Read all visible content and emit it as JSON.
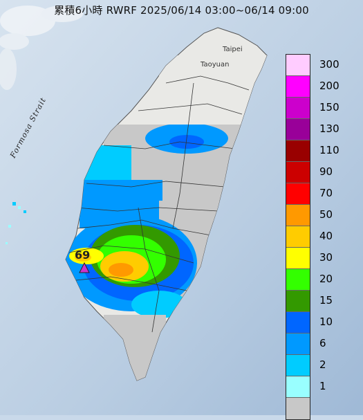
{
  "title": "累積6小時 RWRF 2025/06/14 03:00~06/14 09:00",
  "places": {
    "taipei": "Taipei",
    "taoyuan": "Taoyuan",
    "strait": "Formosa Strait"
  },
  "max_marker": {
    "value": "69",
    "icon": "triangle-icon",
    "color": "#cc33cc"
  },
  "legend": {
    "items": [
      {
        "label": "300",
        "color": "#ffccff"
      },
      {
        "label": "200",
        "color": "#ff00ff"
      },
      {
        "label": "150",
        "color": "#cc00cc"
      },
      {
        "label": "130",
        "color": "#990099"
      },
      {
        "label": "110",
        "color": "#990000"
      },
      {
        "label": "90",
        "color": "#cc0000"
      },
      {
        "label": "70",
        "color": "#ff0000"
      },
      {
        "label": "50",
        "color": "#ff9900"
      },
      {
        "label": "40",
        "color": "#ffcc00"
      },
      {
        "label": "30",
        "color": "#ffff00"
      },
      {
        "label": "20",
        "color": "#33ff00"
      },
      {
        "label": "15",
        "color": "#339900"
      },
      {
        "label": "10",
        "color": "#0066ff"
      },
      {
        "label": "6",
        "color": "#0099ff"
      },
      {
        "label": "2",
        "color": "#00ccff"
      },
      {
        "label": "1",
        "color": "#99ffff"
      },
      {
        "label": "",
        "color": "#c8c8c8"
      }
    ]
  }
}
